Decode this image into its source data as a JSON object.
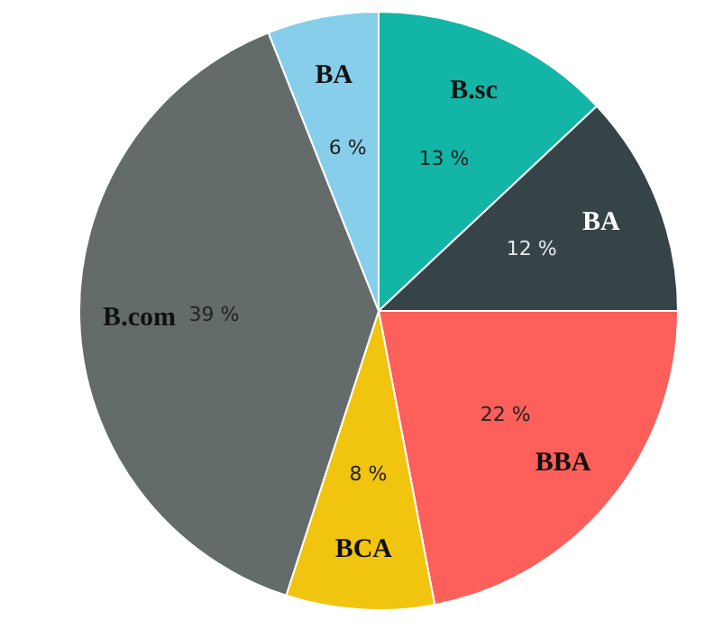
{
  "chart_data": {
    "type": "pie",
    "categories": [
      "B.sc",
      "BA",
      "BBA",
      "BCA",
      "B.com",
      "BA"
    ],
    "values": [
      13,
      12,
      22,
      8,
      39,
      6
    ],
    "colors": [
      "#12b5a6",
      "#364447",
      "#fd5f5b",
      "#f1c40f",
      "#646c6b",
      "#87ceeb"
    ],
    "value_labels": [
      "13 %",
      "12 %",
      "22 %",
      "8 %",
      "39 %",
      "6 %"
    ],
    "legend": false
  }
}
